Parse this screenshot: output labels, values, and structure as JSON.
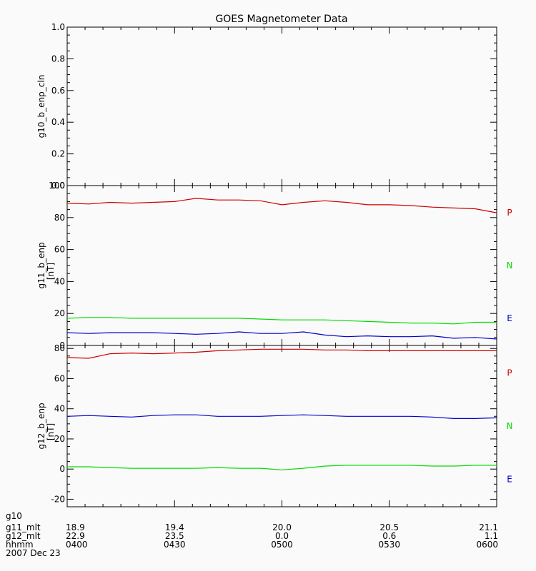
{
  "title": "GOES Magnetometer Data",
  "chart_data": [
    {
      "type": "line",
      "ylabel": "g10_b_enp_cln",
      "yunit": "",
      "ylim": [
        0.0,
        1.0
      ],
      "yticks": [
        "0.0",
        "0.2",
        "0.4",
        "0.6",
        "0.8",
        "1.0"
      ],
      "ytick_values": [
        0.0,
        0.2,
        0.4,
        0.6,
        0.8,
        1.0
      ],
      "series": []
    },
    {
      "type": "line",
      "ylabel": "g11_b_enp",
      "yunit": "[nT]",
      "ylim": [
        0,
        100
      ],
      "yticks": [
        "0",
        "20",
        "40",
        "60",
        "80",
        "100"
      ],
      "ytick_values": [
        0,
        20,
        40,
        60,
        80,
        100
      ],
      "series": [
        {
          "name": "P",
          "color": "#cc0000",
          "x": [
            0,
            0.1,
            0.2,
            0.3,
            0.4,
            0.5,
            0.6,
            0.7,
            0.8,
            0.9,
            1.0,
            1.1,
            1.2,
            1.3,
            1.4,
            1.5,
            1.6,
            1.7,
            1.8,
            1.9,
            2.0
          ],
          "values": [
            89,
            88.5,
            89.5,
            89,
            89.5,
            90,
            92,
            91,
            91,
            90.5,
            88,
            89.5,
            90.5,
            89.5,
            88,
            88,
            87.5,
            86.5,
            86,
            85.5,
            83
          ]
        },
        {
          "name": "N",
          "color": "#00dd00",
          "x": [
            0,
            0.1,
            0.2,
            0.3,
            0.4,
            0.5,
            0.6,
            0.7,
            0.8,
            0.9,
            1.0,
            1.1,
            1.2,
            1.3,
            1.4,
            1.5,
            1.6,
            1.7,
            1.8,
            1.9,
            2.0
          ],
          "values": [
            17,
            17.5,
            17.5,
            17,
            17,
            17,
            17,
            17,
            17,
            16.5,
            16,
            16,
            16,
            15.5,
            15,
            14.5,
            14,
            14,
            13.5,
            14.5,
            14.5
          ]
        },
        {
          "name": "E",
          "color": "#0000cc",
          "x": [
            0,
            0.1,
            0.2,
            0.3,
            0.4,
            0.5,
            0.6,
            0.7,
            0.8,
            0.9,
            1.0,
            1.1,
            1.2,
            1.3,
            1.4,
            1.5,
            1.6,
            1.7,
            1.8,
            1.9,
            2.0
          ],
          "values": [
            8,
            7.5,
            8,
            8,
            8,
            7.5,
            7,
            7.5,
            8.5,
            7.5,
            7.5,
            8.5,
            6.5,
            5.5,
            6,
            5.5,
            5.5,
            6,
            4.5,
            5,
            4
          ]
        }
      ]
    },
    {
      "type": "line",
      "ylabel": "g12_b_enp",
      "yunit": "[nT]",
      "ylim": [
        -25,
        82
      ],
      "yticks": [
        "-20",
        "0",
        "20",
        "40",
        "60",
        "80"
      ],
      "ytick_values": [
        -20,
        0,
        20,
        40,
        60,
        80
      ],
      "series": [
        {
          "name": "P",
          "color": "#cc0000",
          "x": [
            0,
            0.1,
            0.2,
            0.3,
            0.4,
            0.5,
            0.6,
            0.7,
            0.8,
            0.9,
            1.0,
            1.1,
            1.2,
            1.3,
            1.4,
            1.5,
            1.6,
            1.7,
            1.8,
            1.9,
            2.0
          ],
          "values": [
            74,
            73.5,
            76.5,
            77,
            76.5,
            77,
            77.5,
            78.5,
            79,
            79.5,
            79.5,
            79.5,
            79,
            79,
            78.5,
            78.5,
            78.5,
            78.5,
            78.5,
            78.5,
            78.5
          ]
        },
        {
          "name": "N",
          "color": "#00dd00",
          "x": [
            0,
            0.1,
            0.2,
            0.3,
            0.4,
            0.5,
            0.6,
            0.7,
            0.8,
            0.9,
            1.0,
            1.1,
            1.2,
            1.3,
            1.4,
            1.5,
            1.6,
            1.7,
            1.8,
            1.9,
            2.0
          ],
          "values": [
            1.5,
            1.5,
            1,
            0.5,
            0.5,
            0.5,
            0.5,
            1,
            0.5,
            0.5,
            -0.5,
            0.5,
            2,
            2.5,
            2.5,
            2.5,
            2.5,
            2,
            2,
            2.5,
            2.5
          ]
        },
        {
          "name": "E",
          "color": "#0000cc",
          "x": [
            0,
            0.1,
            0.2,
            0.3,
            0.4,
            0.5,
            0.6,
            0.7,
            0.8,
            0.9,
            1.0,
            1.1,
            1.2,
            1.3,
            1.4,
            1.5,
            1.6,
            1.7,
            1.8,
            1.9,
            2.0
          ],
          "values": [
            35,
            35.5,
            35,
            34.5,
            35.5,
            36,
            36,
            35,
            35,
            35,
            35.5,
            36,
            35.5,
            35,
            35,
            35,
            35,
            34.5,
            33.5,
            33.5,
            34
          ]
        }
      ]
    }
  ],
  "xaxis": {
    "range": [
      0,
      2.0
    ],
    "label_values": [
      0,
      0.5,
      1.0,
      1.5,
      2.0
    ],
    "rows": [
      {
        "label": "g10",
        "values": [
          "",
          "",
          "",
          "",
          ""
        ]
      },
      {
        "label": "g11_mlt",
        "values": [
          "18.9",
          "19.4",
          "20.0",
          "20.5",
          "21.1"
        ]
      },
      {
        "label": "g12_mlt",
        "values": [
          "22.9",
          "23.5",
          "0.0",
          "0.6",
          "1.1"
        ]
      },
      {
        "label": "hhmm",
        "values": [
          "0400",
          "0430",
          "0500",
          "0530",
          "0600"
        ]
      }
    ],
    "date": "2007 Dec 23"
  }
}
